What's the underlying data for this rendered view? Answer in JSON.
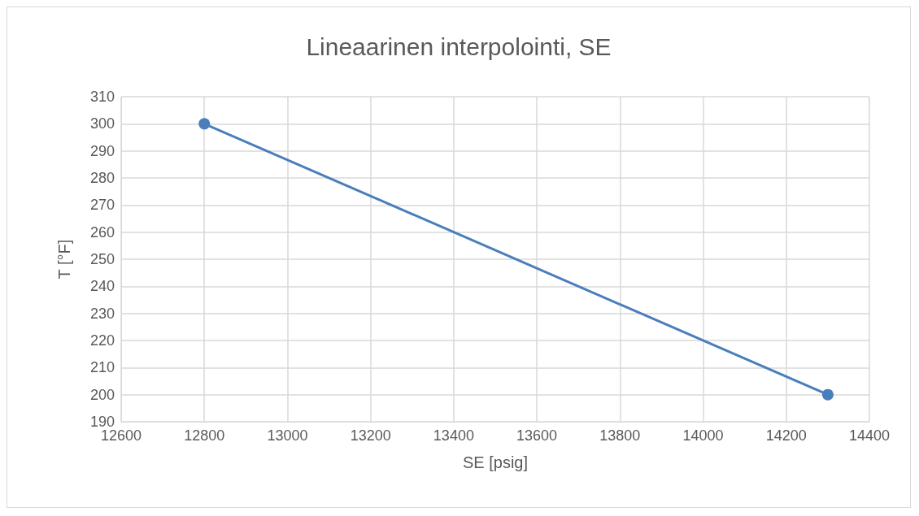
{
  "chart_data": {
    "type": "line",
    "title": "Lineaarinen interpolointi, SE",
    "xlabel": "SE [psig]",
    "ylabel": "T [°F]",
    "x": [
      12800,
      14300
    ],
    "series": [
      {
        "color": "#4a7ebb",
        "values": [
          300,
          200
        ]
      }
    ],
    "xlim": [
      12600,
      14400
    ],
    "xticks": [
      12600,
      12800,
      13000,
      13200,
      13400,
      13600,
      13800,
      14000,
      14200,
      14400
    ],
    "ylim": [
      190,
      310
    ],
    "yticks": [
      190,
      200,
      210,
      220,
      230,
      240,
      250,
      260,
      270,
      280,
      290,
      300,
      310
    ],
    "grid": true,
    "marker": "circle",
    "line_style": "solid"
  }
}
